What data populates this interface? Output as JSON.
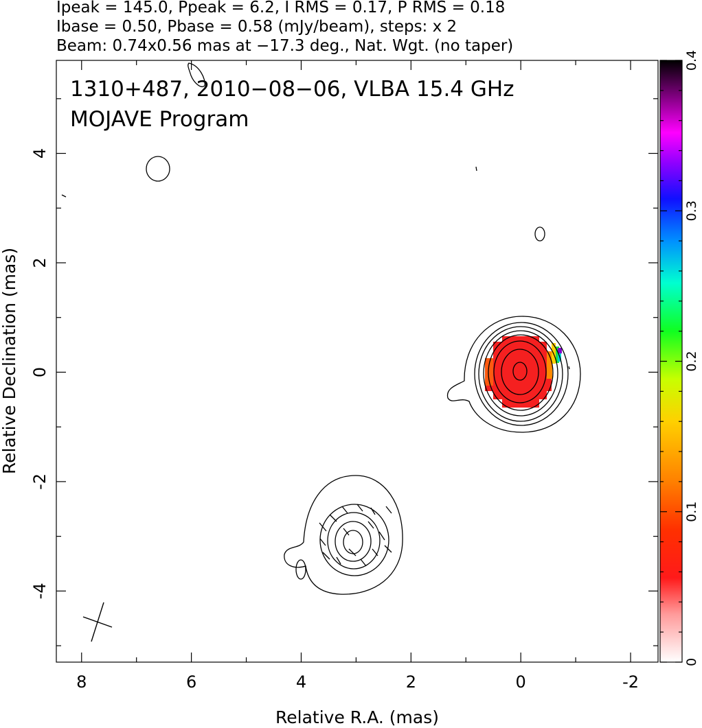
{
  "chart_data": {
    "type": "contour-map",
    "header": [
      "Ipeak = 145.0, Ppeak = 6.2, I RMS = 0.17, P RMS = 0.18",
      "Ibase = 0.50, Pbase = 0.58 (mJy/beam), steps: x 2",
      "Beam: 0.74x0.56 mas at −17.3 deg., Nat. Wgt. (no taper)"
    ],
    "title": "1310+487, 2010−08−06, VLBA 15.4 GHz",
    "subtitle": "MOJAVE Program",
    "x_label": "Relative R.A. (mas)",
    "y_label": "Relative Declination (mas)",
    "xlim": [
      8.46,
      -2.5
    ],
    "xticks": [
      8,
      6,
      4,
      2,
      0,
      -2
    ],
    "ylim": [
      -5.3,
      5.7
    ],
    "yticks": [
      -4,
      -2,
      0,
      2,
      4
    ],
    "colorbar": {
      "lim": [
        0,
        0.4
      ],
      "ticks": [
        0,
        0.1,
        0.2,
        0.3,
        0.4
      ]
    }
  }
}
